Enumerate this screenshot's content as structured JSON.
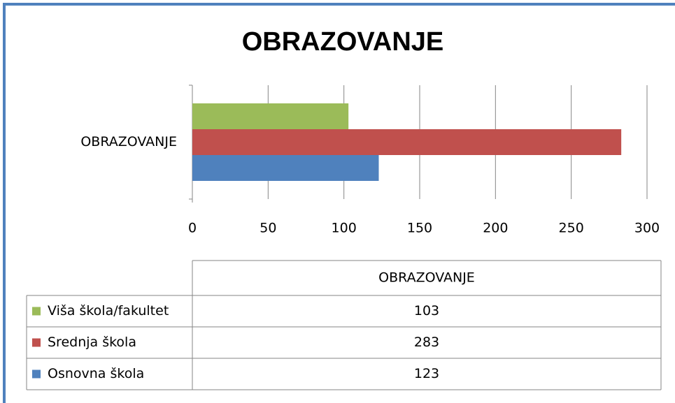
{
  "chart_data": {
    "type": "bar",
    "orientation": "horizontal",
    "title": "OBRAZOVANJE",
    "categories": [
      "OBRAZOVANJE"
    ],
    "series": [
      {
        "name": "Viša škola/fakultet",
        "color": "#9bbb59",
        "values": [
          103
        ]
      },
      {
        "name": "Srednja škola",
        "color": "#c0504d",
        "values": [
          283
        ]
      },
      {
        "name": "Osnovna škola",
        "color": "#4f81bd",
        "values": [
          123
        ]
      }
    ],
    "xlim": [
      0,
      300
    ],
    "xticks": [
      0,
      50,
      100,
      150,
      200,
      250,
      300
    ],
    "grid": true,
    "data_table": true
  }
}
